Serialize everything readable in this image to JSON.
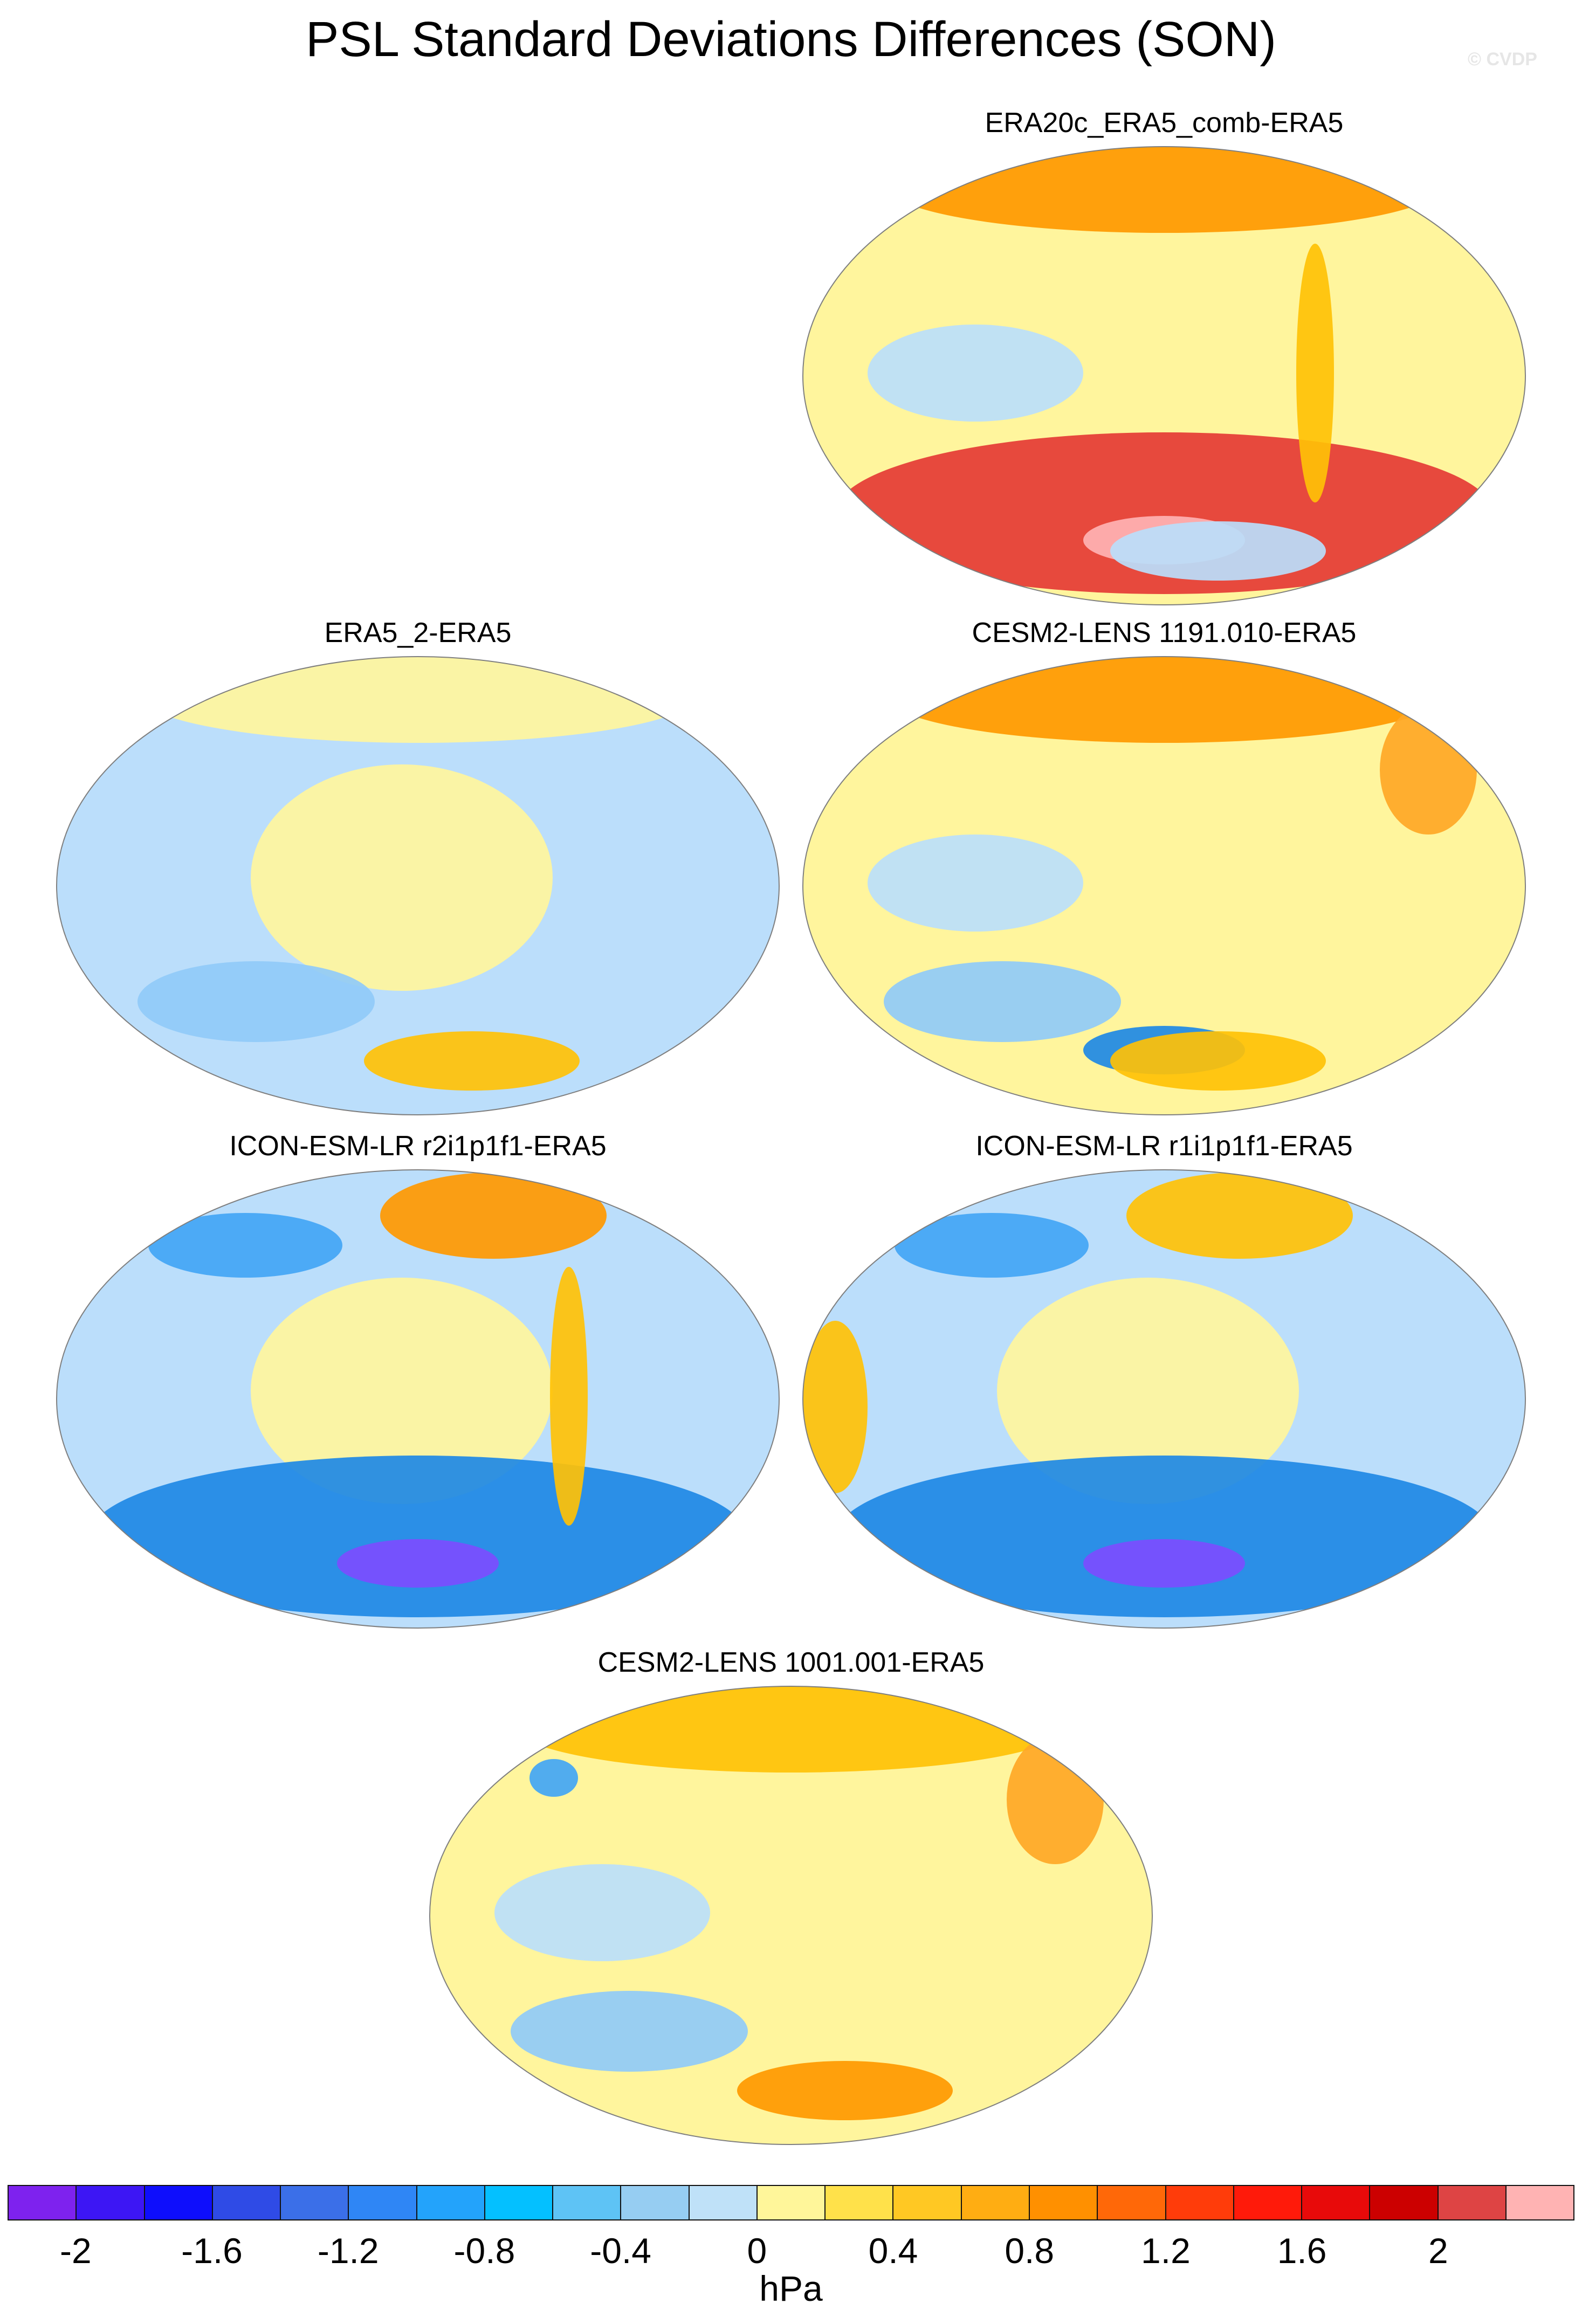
{
  "title": "PSL Standard Deviations Differences (SON)",
  "watermark": "© CVDP",
  "panels": [
    {
      "title": "ERA20c_ERA5_comb-ERA5",
      "base_fill": "#fff59d",
      "blobs": [
        {
          "color": "#ff9800",
          "shape": "north-band"
        },
        {
          "color": "#e53935",
          "shape": "south-band"
        },
        {
          "color": "#ffb3b3",
          "shape": "south-core"
        },
        {
          "color": "#bbdefb",
          "shape": "equator-west"
        },
        {
          "color": "#bbdefb",
          "shape": "south-atlantic"
        },
        {
          "color": "#ffc107",
          "shape": "andes"
        }
      ]
    },
    {
      "title": "ERA5_2-ERA5",
      "base_fill": "#bbdefb",
      "blobs": [
        {
          "color": "#fff59d",
          "shape": "pacific-core"
        },
        {
          "color": "#fff59d",
          "shape": "north-band"
        },
        {
          "color": "#ffc107",
          "shape": "south-atlantic"
        },
        {
          "color": "#90caf9",
          "shape": "south-west"
        }
      ]
    },
    {
      "title": "CESM2-LENS 1191.010-ERA5",
      "base_fill": "#fff59d",
      "blobs": [
        {
          "color": "#ff9800",
          "shape": "north-band"
        },
        {
          "color": "#ffa726",
          "shape": "east-high"
        },
        {
          "color": "#90caf9",
          "shape": "south-west"
        },
        {
          "color": "#1e88e5",
          "shape": "south-core"
        },
        {
          "color": "#bbdefb",
          "shape": "equator-west"
        },
        {
          "color": "#ffc107",
          "shape": "south-atlantic"
        }
      ]
    },
    {
      "title": "ICON-ESM-LR r2i1p1f1-ERA5",
      "base_fill": "#bbdefb",
      "blobs": [
        {
          "color": "#fff59d",
          "shape": "pacific-core"
        },
        {
          "color": "#1e88e5",
          "shape": "south-band"
        },
        {
          "color": "#7c4dff",
          "shape": "south-core"
        },
        {
          "color": "#42a5f5",
          "shape": "north-west"
        },
        {
          "color": "#ff9800",
          "shape": "north-center"
        },
        {
          "color": "#ffc107",
          "shape": "andes"
        }
      ]
    },
    {
      "title": "ICON-ESM-LR r1i1p1f1-ERA5",
      "base_fill": "#bbdefb",
      "blobs": [
        {
          "color": "#fff59d",
          "shape": "pacific-core"
        },
        {
          "color": "#1e88e5",
          "shape": "south-band"
        },
        {
          "color": "#7c4dff",
          "shape": "south-core"
        },
        {
          "color": "#42a5f5",
          "shape": "north-west"
        },
        {
          "color": "#ffc107",
          "shape": "north-center"
        },
        {
          "color": "#ffc107",
          "shape": "west-africa"
        }
      ]
    },
    {
      "title": "CESM2-LENS 1001.001-ERA5",
      "base_fill": "#fff59d",
      "blobs": [
        {
          "color": "#ffc107",
          "shape": "north-band"
        },
        {
          "color": "#bbdefb",
          "shape": "equator-west"
        },
        {
          "color": "#90caf9",
          "shape": "south-west"
        },
        {
          "color": "#ff9800",
          "shape": "south-atlantic"
        },
        {
          "color": "#42a5f5",
          "shape": "asia-dot"
        },
        {
          "color": "#ffa726",
          "shape": "east-high"
        }
      ]
    }
  ],
  "colorbar": {
    "colors": [
      "#7e22ee",
      "#3d16f4",
      "#0e0efc",
      "#2f4be6",
      "#3b6fe8",
      "#2f86f5",
      "#23a3fb",
      "#04c0ff",
      "#5ec3f5",
      "#96cdf2",
      "#bfe1f8",
      "#fff69a",
      "#ffe14a",
      "#ffc823",
      "#ffad12",
      "#ff9000",
      "#ff6808",
      "#ff3c0a",
      "#ff1a0a",
      "#e80a0a",
      "#cc0000",
      "#de4444",
      "#ffb3b3"
    ],
    "tick_labels": [
      "-2",
      "-1.6",
      "-1.2",
      "-0.8",
      "-0.4",
      "0",
      "0.4",
      "0.8",
      "1.2",
      "1.6",
      "2"
    ],
    "units": "hPa"
  }
}
